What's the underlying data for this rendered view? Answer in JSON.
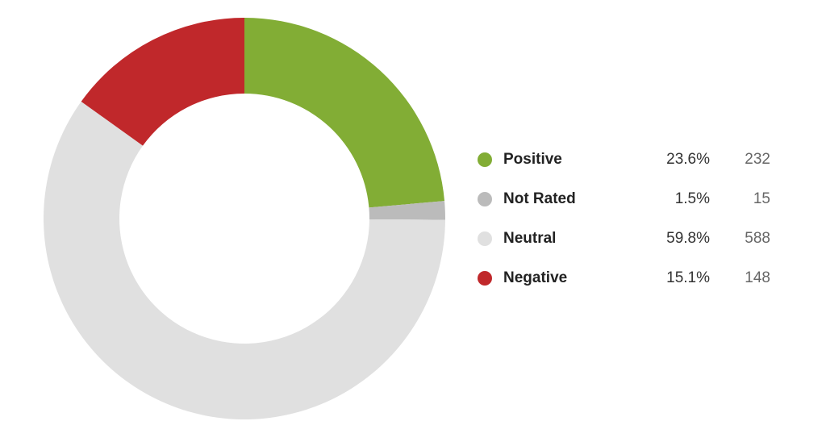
{
  "chart_data": {
    "type": "donut",
    "categories": [
      "Positive",
      "Not Rated",
      "Neutral",
      "Negative"
    ],
    "values": [
      23.6,
      1.5,
      59.8,
      15.1
    ],
    "value_labels": [
      "23.6%",
      "1.5%",
      "59.8%",
      "15.1%"
    ],
    "counts": [
      232,
      15,
      588,
      148
    ],
    "colors": [
      "#82ad35",
      "#bbbbbb",
      "#e0e0e0",
      "#c0282b"
    ]
  }
}
